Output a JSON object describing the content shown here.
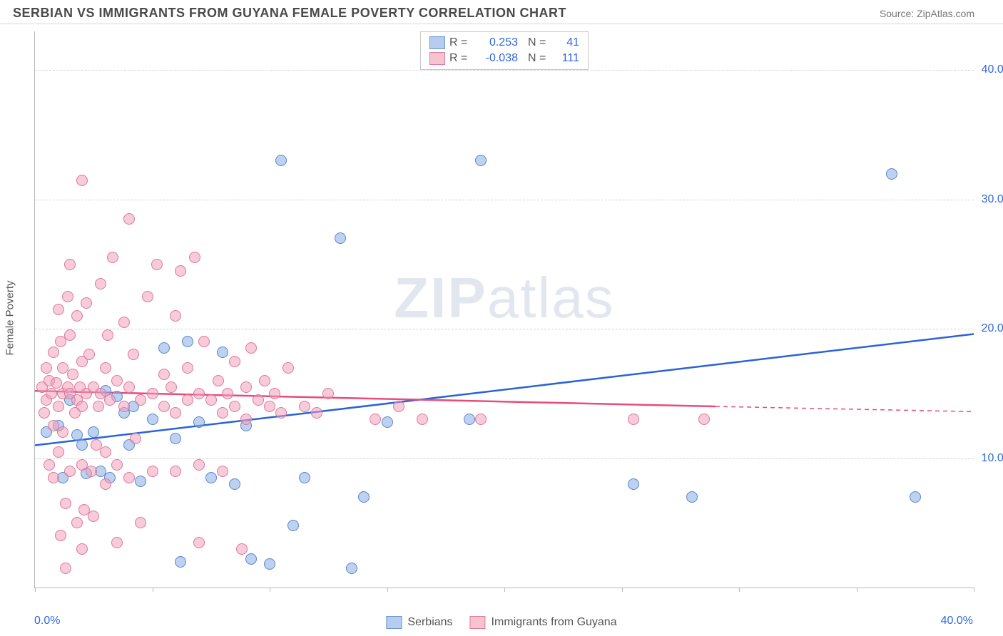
{
  "title": "SERBIAN VS IMMIGRANTS FROM GUYANA FEMALE POVERTY CORRELATION CHART",
  "source": "Source: ZipAtlas.com",
  "y_axis_title": "Female Poverty",
  "xlim": [
    0,
    40
  ],
  "ylim": [
    0,
    43
  ],
  "x_min_label": "0.0%",
  "x_max_label": "40.0%",
  "y_ticks": [
    {
      "v": 10,
      "label": "10.0%"
    },
    {
      "v": 20,
      "label": "20.0%"
    },
    {
      "v": 30,
      "label": "30.0%"
    },
    {
      "v": 40,
      "label": "40.0%"
    }
  ],
  "x_tick_positions": [
    0,
    5,
    10,
    15,
    20,
    25,
    30,
    35,
    40
  ],
  "watermark": {
    "bold": "ZIP",
    "rest": "atlas"
  },
  "legend_top": [
    {
      "color_fill": "#b7cdef",
      "color_border": "#6a94d8",
      "r_label": "R =",
      "r_val": "0.253",
      "n_label": "N =",
      "n_val": "41"
    },
    {
      "color_fill": "#f6c3cf",
      "color_border": "#e47a9a",
      "r_label": "R =",
      "r_val": "-0.038",
      "n_label": "N =",
      "n_val": "111"
    }
  ],
  "legend_bottom": [
    {
      "color_fill": "#b7cdef",
      "color_border": "#6a94d8",
      "name": "Serbians"
    },
    {
      "color_fill": "#f6c3cf",
      "color_border": "#e47a9a",
      "name": "Immigrants from Guyana"
    }
  ],
  "series": [
    {
      "name": "Serbians",
      "color_fill": "rgba(134,172,230,0.55)",
      "color_border": "#5a86cc",
      "trend": {
        "x1": 0,
        "y1": 11.0,
        "x2": 40,
        "y2": 19.6,
        "color": "#2a63d6",
        "width": 2.5,
        "dash_after_x": 40
      },
      "points": [
        [
          0.5,
          12.0
        ],
        [
          1.0,
          12.5
        ],
        [
          1.2,
          8.5
        ],
        [
          1.5,
          14.5
        ],
        [
          2.0,
          11.0
        ],
        [
          2.2,
          8.8
        ],
        [
          2.5,
          12.0
        ],
        [
          3.0,
          15.2
        ],
        [
          3.2,
          8.5
        ],
        [
          3.5,
          14.8
        ],
        [
          4.0,
          11.0
        ],
        [
          4.5,
          8.2
        ],
        [
          5.0,
          13.0
        ],
        [
          5.5,
          18.5
        ],
        [
          6.0,
          11.5
        ],
        [
          6.2,
          2.0
        ],
        [
          6.5,
          19.0
        ],
        [
          7.0,
          12.8
        ],
        [
          7.5,
          8.5
        ],
        [
          8.0,
          18.2
        ],
        [
          8.5,
          8.0
        ],
        [
          9.0,
          12.5
        ],
        [
          9.2,
          2.2
        ],
        [
          10.0,
          1.8
        ],
        [
          10.5,
          33.0
        ],
        [
          11.0,
          4.8
        ],
        [
          11.5,
          8.5
        ],
        [
          13.0,
          27.0
        ],
        [
          13.5,
          1.5
        ],
        [
          14.0,
          7.0
        ],
        [
          15.0,
          12.8
        ],
        [
          18.5,
          13.0
        ],
        [
          19.0,
          33.0
        ],
        [
          25.5,
          8.0
        ],
        [
          28.0,
          7.0
        ],
        [
          36.5,
          32.0
        ],
        [
          37.5,
          7.0
        ],
        [
          4.2,
          14.0
        ],
        [
          2.8,
          9.0
        ],
        [
          1.8,
          11.8
        ],
        [
          3.8,
          13.5
        ]
      ]
    },
    {
      "name": "Immigrants from Guyana",
      "color_fill": "rgba(240,160,185,0.55)",
      "color_border": "#dd7899",
      "trend": {
        "x1": 0,
        "y1": 15.2,
        "x2": 29,
        "y2": 14.0,
        "color": "#e94b7b",
        "width": 2.5,
        "dash_after_x": 29,
        "dash_x2": 40,
        "dash_y2": 13.6
      },
      "points": [
        [
          0.3,
          15.5
        ],
        [
          0.4,
          13.5
        ],
        [
          0.5,
          17.0
        ],
        [
          0.5,
          14.5
        ],
        [
          0.6,
          16.0
        ],
        [
          0.7,
          15.0
        ],
        [
          0.8,
          18.2
        ],
        [
          0.8,
          12.5
        ],
        [
          0.8,
          8.5
        ],
        [
          0.9,
          15.8
        ],
        [
          1.0,
          21.5
        ],
        [
          1.0,
          14.0
        ],
        [
          1.0,
          10.5
        ],
        [
          1.1,
          19.0
        ],
        [
          1.2,
          17.0
        ],
        [
          1.2,
          15.0
        ],
        [
          1.2,
          12.0
        ],
        [
          1.3,
          6.5
        ],
        [
          1.3,
          1.5
        ],
        [
          1.4,
          15.5
        ],
        [
          1.5,
          25.0
        ],
        [
          1.5,
          19.5
        ],
        [
          1.5,
          15.0
        ],
        [
          1.5,
          9.0
        ],
        [
          1.6,
          16.5
        ],
        [
          1.7,
          13.5
        ],
        [
          1.8,
          21.0
        ],
        [
          1.8,
          14.5
        ],
        [
          1.8,
          5.0
        ],
        [
          1.9,
          15.5
        ],
        [
          2.0,
          31.5
        ],
        [
          2.0,
          17.5
        ],
        [
          2.0,
          14.0
        ],
        [
          2.0,
          9.5
        ],
        [
          2.0,
          3.0
        ],
        [
          2.2,
          22.0
        ],
        [
          2.2,
          15.0
        ],
        [
          2.3,
          18.0
        ],
        [
          2.4,
          9.0
        ],
        [
          2.5,
          15.5
        ],
        [
          2.5,
          5.5
        ],
        [
          2.7,
          14.0
        ],
        [
          2.8,
          23.5
        ],
        [
          2.8,
          15.0
        ],
        [
          3.0,
          17.0
        ],
        [
          3.0,
          10.5
        ],
        [
          3.0,
          8.0
        ],
        [
          3.2,
          14.5
        ],
        [
          3.3,
          25.5
        ],
        [
          3.5,
          16.0
        ],
        [
          3.5,
          9.5
        ],
        [
          3.5,
          3.5
        ],
        [
          3.8,
          20.5
        ],
        [
          3.8,
          14.0
        ],
        [
          4.0,
          28.5
        ],
        [
          4.0,
          15.5
        ],
        [
          4.0,
          8.5
        ],
        [
          4.2,
          18.0
        ],
        [
          4.5,
          14.5
        ],
        [
          4.5,
          5.0
        ],
        [
          4.8,
          22.5
        ],
        [
          5.0,
          15.0
        ],
        [
          5.0,
          9.0
        ],
        [
          5.2,
          25.0
        ],
        [
          5.5,
          14.0
        ],
        [
          5.5,
          16.5
        ],
        [
          5.8,
          15.5
        ],
        [
          6.0,
          21.0
        ],
        [
          6.0,
          13.5
        ],
        [
          6.0,
          9.0
        ],
        [
          6.2,
          24.5
        ],
        [
          6.5,
          14.5
        ],
        [
          6.5,
          17.0
        ],
        [
          6.8,
          25.5
        ],
        [
          7.0,
          15.0
        ],
        [
          7.0,
          9.5
        ],
        [
          7.0,
          3.5
        ],
        [
          7.2,
          19.0
        ],
        [
          7.5,
          14.5
        ],
        [
          7.8,
          16.0
        ],
        [
          8.0,
          13.5
        ],
        [
          8.0,
          9.0
        ],
        [
          8.2,
          15.0
        ],
        [
          8.5,
          17.5
        ],
        [
          8.5,
          14.0
        ],
        [
          8.8,
          3.0
        ],
        [
          9.0,
          15.5
        ],
        [
          9.0,
          13.0
        ],
        [
          9.2,
          18.5
        ],
        [
          9.5,
          14.5
        ],
        [
          9.8,
          16.0
        ],
        [
          10.0,
          14.0
        ],
        [
          10.2,
          15.0
        ],
        [
          10.5,
          13.5
        ],
        [
          10.8,
          17.0
        ],
        [
          11.5,
          14.0
        ],
        [
          12.0,
          13.5
        ],
        [
          12.5,
          15.0
        ],
        [
          14.5,
          13.0
        ],
        [
          15.5,
          14.0
        ],
        [
          16.5,
          13.0
        ],
        [
          19.0,
          13.0
        ],
        [
          25.5,
          13.0
        ],
        [
          28.5,
          13.0
        ],
        [
          0.6,
          9.5
        ],
        [
          1.1,
          4.0
        ],
        [
          1.4,
          22.5
        ],
        [
          2.1,
          6.0
        ],
        [
          2.6,
          11.0
        ],
        [
          3.1,
          19.5
        ],
        [
          4.3,
          11.5
        ]
      ]
    }
  ]
}
